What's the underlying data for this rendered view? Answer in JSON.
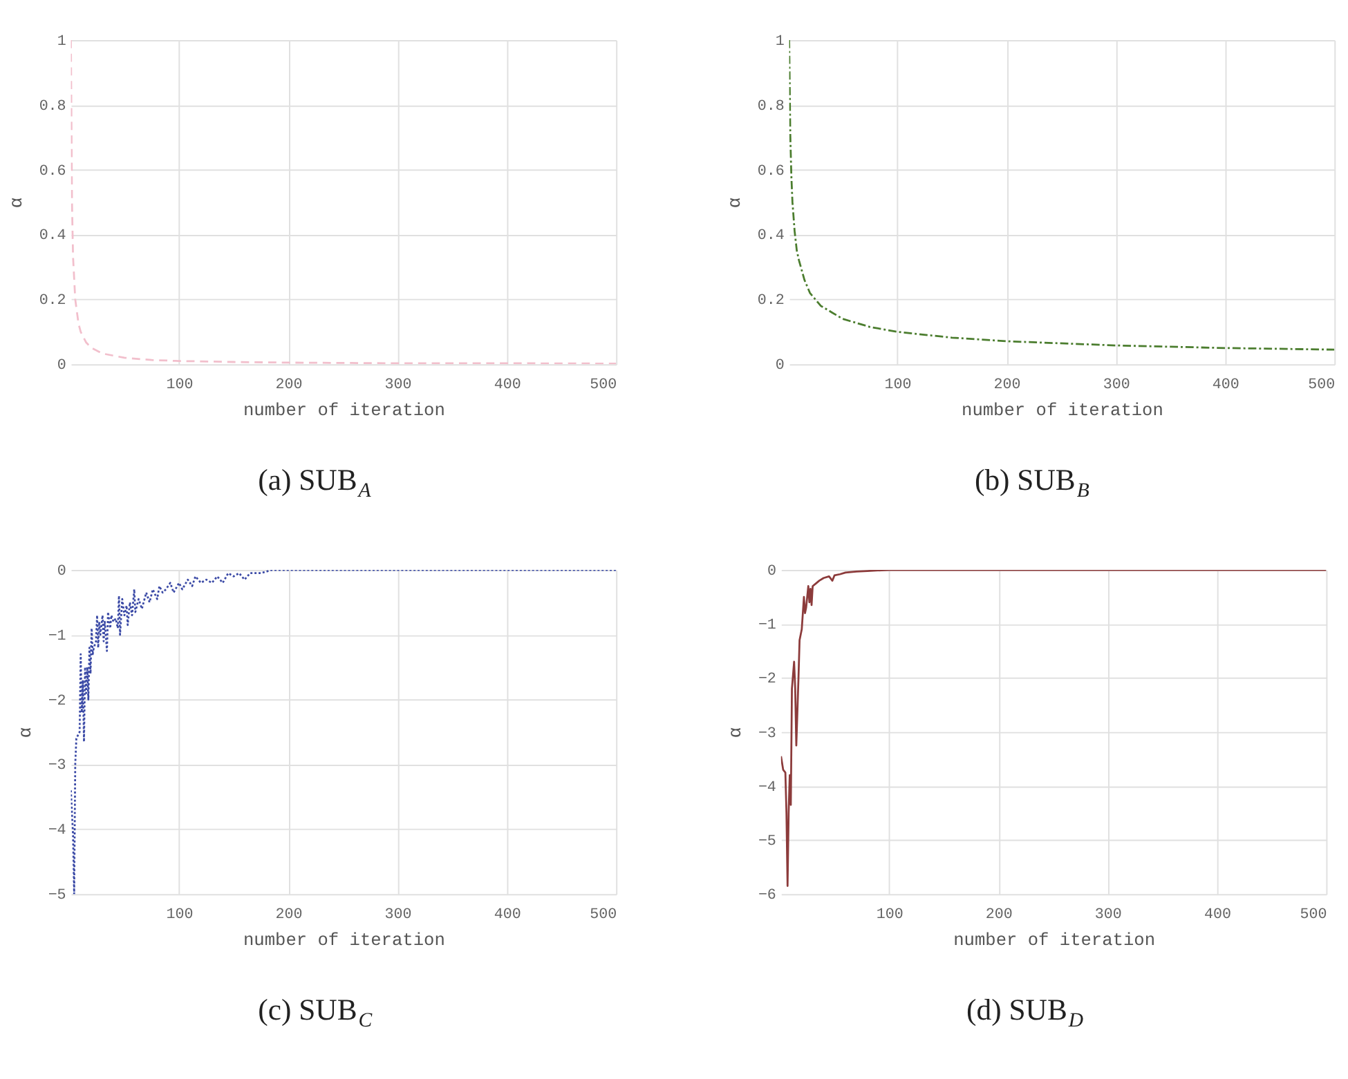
{
  "chart_data": [
    {
      "type": "line",
      "title": "(a) SUB$_{A}$",
      "xlabel": "number of iteration",
      "ylabel": "α",
      "xlim": [
        1,
        500
      ],
      "ylim": [
        0,
        1
      ],
      "xticks": [
        100,
        200,
        300,
        400,
        500
      ],
      "yticks": [
        0,
        0.2,
        0.4,
        0.6,
        0.8,
        1
      ],
      "grid": true,
      "line_style": "dashed",
      "series": [
        {
          "color": "#f2bfcc",
          "x": [
            1,
            2,
            3,
            5,
            8,
            10,
            15,
            20,
            30,
            50,
            75,
            100,
            150,
            200,
            300,
            400,
            500
          ],
          "values": [
            1,
            0.5,
            0.33,
            0.2,
            0.125,
            0.1,
            0.067,
            0.05,
            0.033,
            0.02,
            0.013,
            0.01,
            0.007,
            0.005,
            0.003,
            0.003,
            0.002
          ]
        }
      ]
    },
    {
      "type": "line",
      "title": "(b) SUB$_{B}$",
      "xlabel": "number of iteration",
      "ylabel": "α",
      "xlim": [
        1,
        500
      ],
      "ylim": [
        0,
        1
      ],
      "xticks": [
        100,
        200,
        300,
        400,
        500
      ],
      "yticks": [
        0,
        0.2,
        0.4,
        0.6,
        0.8,
        1
      ],
      "grid": true,
      "line_style": "dashdot",
      "series": [
        {
          "color": "#4b7d2e",
          "x": [
            1,
            2,
            3,
            4,
            6,
            8,
            10,
            15,
            20,
            25,
            30,
            40,
            50,
            75,
            100,
            150,
            200,
            300,
            400,
            500
          ],
          "values": [
            1,
            0.71,
            0.58,
            0.5,
            0.41,
            0.35,
            0.32,
            0.26,
            0.22,
            0.2,
            0.18,
            0.16,
            0.14,
            0.115,
            0.1,
            0.082,
            0.071,
            0.058,
            0.05,
            0.045
          ]
        }
      ]
    },
    {
      "type": "line",
      "title": "(c) SUB$_{C}$",
      "xlabel": "number of iteration",
      "ylabel": "α",
      "xlim": [
        1,
        500
      ],
      "ylim": [
        -5,
        0
      ],
      "xticks": [
        100,
        200,
        300,
        400,
        500
      ],
      "yticks": [
        -5,
        -4,
        -3,
        -2,
        -1,
        0
      ],
      "grid": true,
      "line_style": "dotted",
      "series": [
        {
          "color": "#3b4aa6",
          "x": [
            1,
            3,
            4,
            5,
            6,
            9,
            10,
            11,
            12,
            13,
            14,
            15,
            16,
            17,
            18,
            19,
            20,
            21,
            22,
            24,
            25,
            26,
            27,
            28,
            30,
            31,
            32,
            34,
            35,
            37,
            38,
            40,
            42,
            44,
            45,
            46,
            48,
            50,
            52,
            53,
            55,
            57,
            59,
            60,
            63,
            66,
            70,
            73,
            76,
            80,
            82,
            85,
            88,
            92,
            95,
            100,
            103,
            108,
            112,
            115,
            120,
            125,
            130,
            135,
            140,
            145,
            150,
            155,
            160,
            165,
            175,
            185,
            200,
            300,
            400,
            500
          ],
          "values": [
            -3.4,
            -4.1,
            -5.0,
            -3.0,
            -2.6,
            -2.5,
            -1.3,
            -2.2,
            -1.7,
            -2.65,
            -1.5,
            -1.9,
            -1.5,
            -2.0,
            -1.2,
            -1.6,
            -0.9,
            -1.3,
            -1.2,
            -1.1,
            -0.7,
            -1.2,
            -0.8,
            -1.0,
            -0.7,
            -1.1,
            -0.8,
            -1.25,
            -0.65,
            -0.9,
            -0.7,
            -0.8,
            -0.75,
            -0.9,
            -0.4,
            -1.0,
            -0.45,
            -0.7,
            -0.55,
            -0.85,
            -0.5,
            -0.7,
            -0.3,
            -0.65,
            -0.45,
            -0.6,
            -0.35,
            -0.5,
            -0.3,
            -0.45,
            -0.25,
            -0.35,
            -0.3,
            -0.2,
            -0.35,
            -0.2,
            -0.3,
            -0.15,
            -0.25,
            -0.1,
            -0.2,
            -0.15,
            -0.2,
            -0.1,
            -0.2,
            -0.05,
            -0.1,
            -0.05,
            -0.15,
            -0.05,
            -0.05,
            0,
            0,
            0,
            0,
            0
          ]
        }
      ]
    },
    {
      "type": "line",
      "title": "(d) SUB$_{D}$",
      "xlabel": "number of iteration",
      "ylabel": "α",
      "xlim": [
        1,
        500
      ],
      "ylim": [
        -6,
        0
      ],
      "xticks": [
        100,
        200,
        300,
        400,
        500
      ],
      "yticks": [
        -6,
        -5,
        -4,
        -3,
        -2,
        -1,
        0
      ],
      "grid": true,
      "line_style": "solid",
      "series": [
        {
          "color": "#8c3b3b",
          "x": [
            1,
            3,
            5,
            6,
            7,
            8,
            9,
            10,
            11,
            13,
            14,
            15,
            17,
            18,
            20,
            22,
            23,
            24,
            26,
            27,
            28,
            29,
            30,
            33,
            36,
            40,
            45,
            48,
            50,
            55,
            60,
            70,
            80,
            100,
            200,
            300,
            400,
            500
          ],
          "values": [
            -3.45,
            -3.7,
            -3.75,
            -4.5,
            -5.85,
            -4.5,
            -3.8,
            -4.35,
            -2.2,
            -1.7,
            -2.2,
            -3.25,
            -2.0,
            -1.3,
            -1.1,
            -0.5,
            -0.8,
            -0.7,
            -0.3,
            -0.6,
            -0.35,
            -0.65,
            -0.3,
            -0.25,
            -0.2,
            -0.15,
            -0.12,
            -0.2,
            -0.1,
            -0.08,
            -0.05,
            -0.03,
            -0.02,
            0,
            0,
            0,
            0,
            0
          ]
        }
      ]
    }
  ]
}
